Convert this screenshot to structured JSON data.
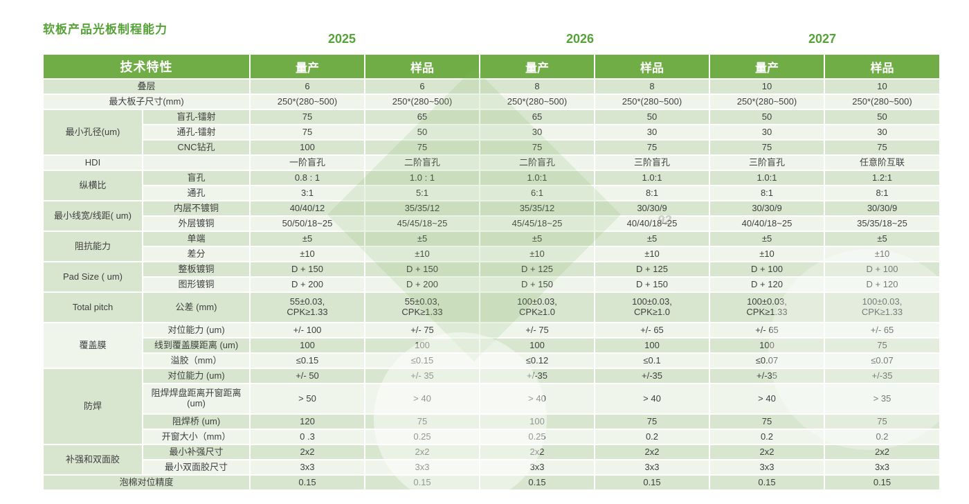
{
  "title": "软板产品光板制程能力",
  "years": [
    "2025",
    "2026",
    "2027"
  ],
  "watermark_text": "92",
  "colors": {
    "header_green": "#71ad47",
    "title_green": "#55a337",
    "band_green": "#d9e6cf",
    "band_light": "#f0f5ec",
    "cell_text": "#3f3f3f"
  },
  "header": {
    "feature_col": "技术特性",
    "col_labels": [
      "量产",
      "样品",
      "量产",
      "样品",
      "量产",
      "样品"
    ]
  },
  "rows": [
    {
      "label": "叠层",
      "merge": true,
      "values": [
        "6",
        "6",
        "8",
        "8",
        "10",
        "10"
      ]
    },
    {
      "label": "最大板子尺寸(mm)",
      "merge": true,
      "values": [
        "250*(280~500)",
        "250*(280~500)",
        "250*(280~500)",
        "250*(280~500)",
        "250*(280~500)",
        "250*(280~500)"
      ]
    },
    {
      "group": {
        "label": "最小孔径(um)",
        "span": 3
      },
      "label": "盲孔-镭射",
      "values": [
        "75",
        "65",
        "65",
        "50",
        "50",
        "50"
      ]
    },
    {
      "label": "通孔-镭射",
      "values": [
        "75",
        "50",
        "30",
        "30",
        "30",
        "30"
      ]
    },
    {
      "label": "CNC钻孔",
      "values": [
        "100",
        "75",
        "75",
        "75",
        "75",
        "75"
      ]
    },
    {
      "group": {
        "label": "HDI",
        "span": 1
      },
      "label": "",
      "values": [
        "一阶盲孔",
        "二阶盲孔",
        "二阶盲孔",
        "三阶盲孔",
        "三阶盲孔",
        "任意阶互联"
      ]
    },
    {
      "group": {
        "label": "纵横比",
        "span": 2
      },
      "label": "盲孔",
      "values": [
        "0.8 : 1",
        "1.0 : 1",
        "1.0:1",
        "1.0:1",
        "1.0:1",
        "1.2:1"
      ]
    },
    {
      "label": "通孔",
      "values": [
        "3:1",
        "5:1",
        "6:1",
        "8:1",
        "8:1",
        "8:1"
      ]
    },
    {
      "group": {
        "label": "最小线宽/线距( um)",
        "span": 2
      },
      "label": "内层不镀铜",
      "values": [
        "40/40/12",
        "35/35/12",
        "35/35/12",
        "30/30/9",
        "30/30/9",
        "30/30/9"
      ]
    },
    {
      "label": "外层镀铜",
      "values": [
        "50/50/18~25",
        "45/45/18~25",
        "45/45/18~25",
        "40/40/18~25",
        "40/40/18~25",
        "35/35/18~25"
      ]
    },
    {
      "group": {
        "label": "阻抗能力",
        "span": 2
      },
      "label": "单端",
      "values": [
        "±5",
        "±5",
        "±5",
        "±5",
        "±5",
        "±5"
      ]
    },
    {
      "label": "差分",
      "values": [
        "±10",
        "±10",
        "±10",
        "±10",
        "±10",
        "±10"
      ]
    },
    {
      "group": {
        "label": "Pad Size ( um)",
        "span": 2
      },
      "label": "整板镀铜",
      "values": [
        "D + 150",
        "D + 150",
        "D + 125",
        "D + 125",
        "D + 100",
        "D + 100"
      ]
    },
    {
      "label": "图形镀铜",
      "values": [
        "D + 200",
        "D + 200",
        "D + 150",
        "D + 150",
        "D + 120",
        "D + 120"
      ]
    },
    {
      "group": {
        "label": "Total pitch",
        "span": 1
      },
      "label": "公差 (mm)",
      "tall": true,
      "values": [
        "55±0.03,\nCPK≥1.33",
        "55±0.03,\nCPK≥1.33",
        "100±0.03,\nCPK≥1.0",
        "100±0.03,\nCPK≥1.0",
        "100±0.03,\nCPK≥1.33",
        "100±0.03,\nCPK≥1.33"
      ]
    },
    {
      "group": {
        "label": "覆盖膜",
        "span": 3
      },
      "label": "对位能力 (um)",
      "values": [
        "+/- 100",
        "+/- 75",
        "+/- 75",
        "+/- 65",
        "+/- 65",
        "+/- 65"
      ]
    },
    {
      "label": "线到覆盖膜距离 (um)",
      "values": [
        "100",
        "100",
        "100",
        "100",
        "100",
        "75"
      ]
    },
    {
      "label": "溢胶（mm）",
      "values": [
        "≤0.15",
        "≤0.15",
        "≤0.12",
        "≤0.1",
        "≤0.07",
        "≤0.07"
      ]
    },
    {
      "group": {
        "label": "防焊",
        "span": 4
      },
      "label": "对位能力 (um)",
      "values": [
        "+/- 50",
        "+/- 35",
        "+/-35",
        "+/-35",
        "+/-35",
        "+/-35"
      ]
    },
    {
      "label": "阻焊焊盘距离开窗距离\n(um)",
      "tall": true,
      "values": [
        "> 50",
        "> 40",
        "> 40",
        "> 40",
        "> 40",
        "> 35"
      ]
    },
    {
      "label": "阻焊桥 (um)",
      "values": [
        "120",
        "75",
        "100",
        "75",
        "75",
        "75"
      ]
    },
    {
      "label": "开窗大小（mm）",
      "values": [
        "0 .3",
        "0.25",
        "0.25",
        "0.2",
        "0.2",
        "0.2"
      ]
    },
    {
      "group": {
        "label": "补强和双面胶",
        "span": 2
      },
      "label": "最小补强尺寸",
      "values": [
        "2x2",
        "2x2",
        "2x2",
        "2x2",
        "2x2",
        "2x2"
      ]
    },
    {
      "label": "最小双面胶尺寸",
      "values": [
        "3x3",
        "3x3",
        "3x3",
        "3x3",
        "3x3",
        "3x3"
      ]
    },
    {
      "label": "泡棉对位精度",
      "merge": true,
      "values": [
        "0.15",
        "0.15",
        "0.15",
        "0.15",
        "0.15",
        "0.15"
      ]
    }
  ]
}
